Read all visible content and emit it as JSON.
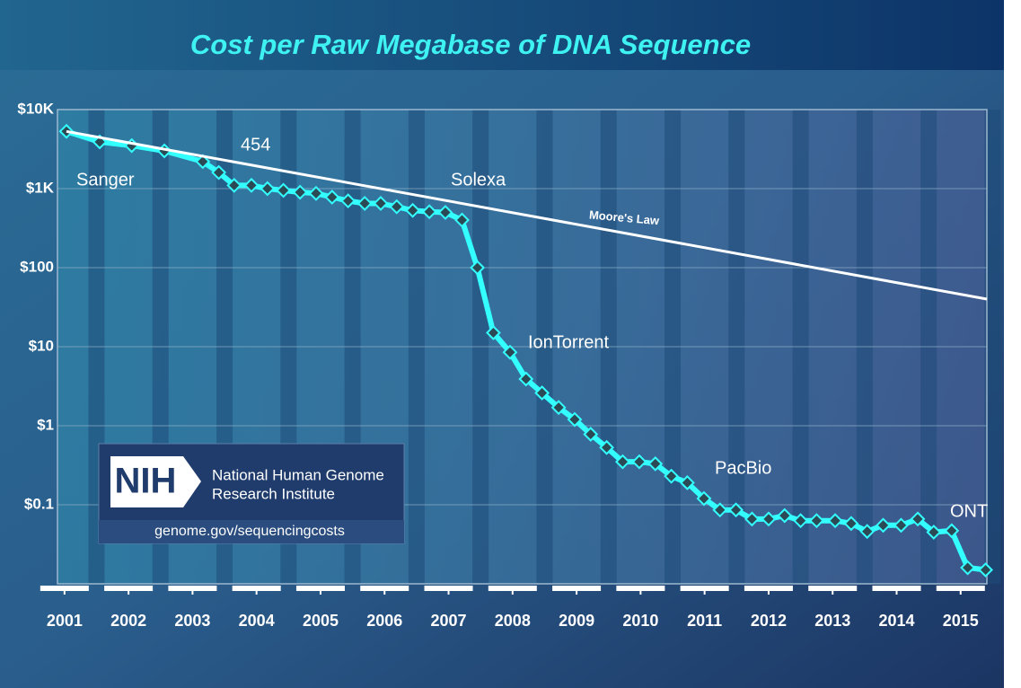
{
  "chart_data": {
    "type": "line",
    "title": "Cost per Raw Megabase of DNA Sequence",
    "log_scale": "y",
    "grid": true,
    "xlim": [
      2000.89,
      2015.41
    ],
    "xticks": [
      2001,
      2002,
      2003,
      2004,
      2005,
      2006,
      2007,
      2008,
      2009,
      2010,
      2011,
      2012,
      2013,
      2014,
      2015
    ],
    "ylim": [
      0.01,
      10000
    ],
    "yticks": [
      {
        "value": 10000,
        "label": "$10K"
      },
      {
        "value": 1000,
        "label": "$1K"
      },
      {
        "value": 100,
        "label": "$100"
      },
      {
        "value": 10,
        "label": "$10"
      },
      {
        "value": 1,
        "label": "$1"
      },
      {
        "value": 0.1,
        "label": "$0.1"
      }
    ],
    "series": [
      {
        "color": "#33ffff",
        "x": [
          2001.03,
          2001.55,
          2002.05,
          2002.56,
          2003.16,
          2003.41,
          2003.65,
          2003.92,
          2004.17,
          2004.42,
          2004.68,
          2004.93,
          2005.18,
          2005.43,
          2005.69,
          2005.94,
          2006.19,
          2006.44,
          2006.7,
          2006.95,
          2007.21,
          2007.45,
          2007.7,
          2007.96,
          2008.21,
          2008.46,
          2008.72,
          2008.97,
          2009.22,
          2009.47,
          2009.72,
          2009.98,
          2010.23,
          2010.48,
          2010.73,
          2010.99,
          2011.24,
          2011.49,
          2011.74,
          2012.0,
          2012.25,
          2012.5,
          2012.75,
          2013.04,
          2013.29,
          2013.54,
          2013.79,
          2014.07,
          2014.33,
          2014.58,
          2014.86,
          2015.11,
          2015.39
        ],
        "values": [
          5300,
          3900,
          3500,
          3000,
          2200,
          1600,
          1100,
          1100,
          1000,
          950,
          900,
          870,
          780,
          700,
          650,
          650,
          590,
          530,
          510,
          500,
          400,
          100,
          15,
          8.5,
          3.9,
          2.6,
          1.7,
          1.2,
          0.78,
          0.53,
          0.35,
          0.35,
          0.33,
          0.23,
          0.19,
          0.12,
          0.086,
          0.086,
          0.066,
          0.066,
          0.073,
          0.063,
          0.063,
          0.063,
          0.058,
          0.046,
          0.055,
          0.055,
          0.066,
          0.045,
          0.047,
          0.016,
          0.015
        ]
      },
      {
        "name": "Moore's Law",
        "color": "#ffffff",
        "x": [
          2001.03,
          2015.41
        ],
        "values": [
          5300,
          40
        ]
      }
    ],
    "annotations": [
      "Sanger",
      "454",
      "Solexa",
      "IonTorrent",
      "PacBio",
      "ONT"
    ]
  },
  "logo": {
    "mark": "NIH",
    "line1": "National Human Genome",
    "line2": "Research Institute",
    "url": "genome.gov/sequencingcosts"
  }
}
